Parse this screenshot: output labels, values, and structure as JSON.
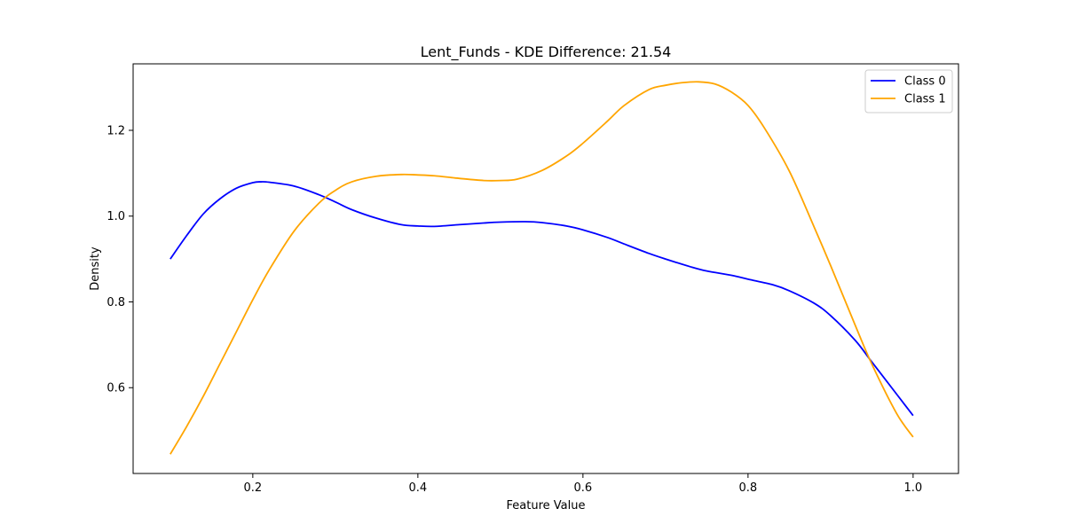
{
  "chart_data": {
    "type": "line",
    "title": "Lent_Funds - KDE Difference: 21.54",
    "xlabel": "Feature Value",
    "ylabel": "Density",
    "xlim": [
      0.055,
      1.055
    ],
    "ylim": [
      0.4,
      1.355
    ],
    "xticks": [
      0.2,
      0.4,
      0.6,
      0.8,
      1.0
    ],
    "xtick_labels": [
      "0.2",
      "0.4",
      "0.6",
      "0.8",
      "1.0"
    ],
    "yticks": [
      0.6,
      0.8,
      1.0,
      1.2
    ],
    "ytick_labels": [
      "0.6",
      "0.8",
      "1.0",
      "1.2"
    ],
    "grid": false,
    "legend_position": "top-right",
    "series": [
      {
        "name": "Class 0",
        "color": "#0000ff",
        "x": [
          0.1,
          0.12,
          0.14,
          0.16,
          0.18,
          0.2,
          0.21,
          0.22,
          0.25,
          0.28,
          0.3,
          0.32,
          0.35,
          0.38,
          0.4,
          0.42,
          0.45,
          0.48,
          0.5,
          0.53,
          0.55,
          0.58,
          0.6,
          0.63,
          0.65,
          0.68,
          0.7,
          0.73,
          0.75,
          0.78,
          0.8,
          0.83,
          0.85,
          0.88,
          0.9,
          0.93,
          0.95,
          0.98,
          1.0
        ],
        "y": [
          0.9,
          0.955,
          1.005,
          1.04,
          1.065,
          1.078,
          1.08,
          1.079,
          1.07,
          1.05,
          1.033,
          1.015,
          0.995,
          0.98,
          0.977,
          0.976,
          0.98,
          0.984,
          0.986,
          0.987,
          0.985,
          0.977,
          0.968,
          0.95,
          0.935,
          0.913,
          0.9,
          0.882,
          0.872,
          0.862,
          0.853,
          0.84,
          0.826,
          0.797,
          0.768,
          0.71,
          0.66,
          0.585,
          0.535
        ]
      },
      {
        "name": "Class 1",
        "color": "#ffa500",
        "x": [
          0.1,
          0.12,
          0.14,
          0.16,
          0.18,
          0.2,
          0.22,
          0.25,
          0.28,
          0.3,
          0.32,
          0.35,
          0.38,
          0.4,
          0.42,
          0.45,
          0.48,
          0.5,
          0.52,
          0.55,
          0.58,
          0.6,
          0.63,
          0.65,
          0.68,
          0.7,
          0.72,
          0.74,
          0.76,
          0.78,
          0.8,
          0.82,
          0.85,
          0.88,
          0.9,
          0.93,
          0.95,
          0.98,
          1.0
        ],
        "y": [
          0.445,
          0.51,
          0.58,
          0.655,
          0.73,
          0.805,
          0.875,
          0.965,
          1.03,
          1.06,
          1.08,
          1.093,
          1.097,
          1.096,
          1.094,
          1.088,
          1.083,
          1.083,
          1.086,
          1.106,
          1.14,
          1.17,
          1.222,
          1.258,
          1.295,
          1.305,
          1.311,
          1.313,
          1.308,
          1.289,
          1.258,
          1.205,
          1.105,
          0.975,
          0.885,
          0.745,
          0.655,
          0.54,
          0.485
        ]
      }
    ]
  }
}
